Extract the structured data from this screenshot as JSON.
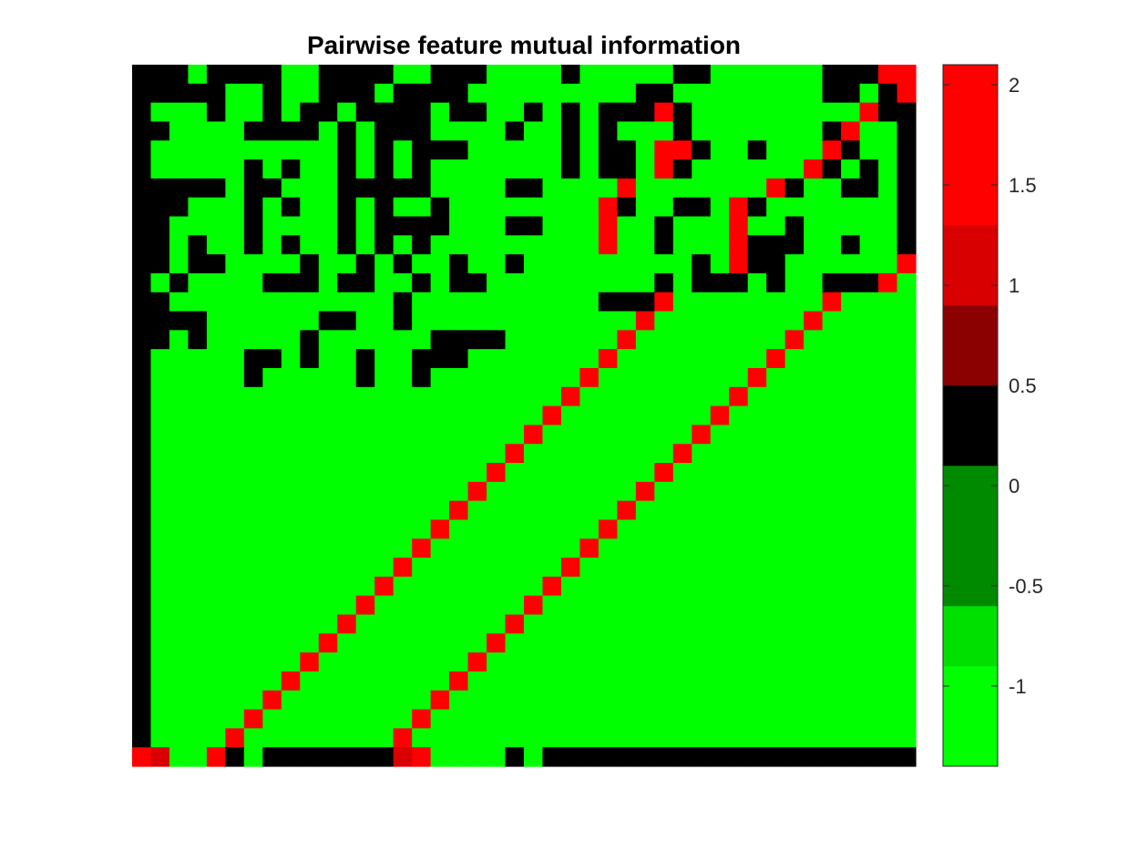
{
  "chart_data": {
    "type": "heatmap",
    "title": "Pairwise feature mutual information",
    "xlabel": "",
    "ylabel": "",
    "rows": 37,
    "cols": 42,
    "value_levels": [
      -1.2,
      -0.75,
      -0.25,
      0.25,
      0.75,
      1.25,
      1.75
    ],
    "matrix": [
      [
        3,
        3,
        3,
        0,
        3,
        3,
        3,
        3,
        0,
        0,
        3,
        3,
        3,
        3,
        0,
        0,
        3,
        3,
        3,
        0,
        0,
        0,
        0,
        3,
        0,
        0,
        0,
        0,
        0,
        3,
        3,
        0,
        0,
        0,
        0,
        0,
        0,
        3,
        3,
        3,
        6,
        6
      ],
      [
        3,
        3,
        3,
        3,
        3,
        0,
        0,
        3,
        0,
        0,
        3,
        3,
        3,
        0,
        3,
        3,
        3,
        3,
        0,
        0,
        0,
        0,
        0,
        0,
        0,
        0,
        0,
        3,
        3,
        0,
        0,
        0,
        0,
        0,
        0,
        0,
        0,
        3,
        3,
        0,
        3,
        6
      ],
      [
        3,
        0,
        0,
        0,
        3,
        0,
        0,
        3,
        0,
        3,
        3,
        0,
        3,
        3,
        3,
        3,
        0,
        3,
        3,
        0,
        0,
        3,
        0,
        3,
        0,
        3,
        3,
        3,
        6,
        3,
        0,
        0,
        0,
        0,
        0,
        0,
        0,
        0,
        0,
        6,
        3,
        3
      ],
      [
        3,
        3,
        0,
        0,
        0,
        0,
        3,
        3,
        3,
        3,
        0,
        3,
        0,
        3,
        3,
        3,
        0,
        0,
        0,
        0,
        3,
        0,
        0,
        3,
        0,
        3,
        0,
        0,
        0,
        3,
        0,
        0,
        0,
        0,
        0,
        0,
        0,
        3,
        6,
        0,
        0,
        3
      ],
      [
        3,
        0,
        0,
        0,
        0,
        0,
        0,
        0,
        0,
        0,
        0,
        3,
        0,
        3,
        0,
        3,
        3,
        3,
        0,
        0,
        0,
        0,
        0,
        3,
        0,
        3,
        3,
        0,
        6,
        6,
        3,
        0,
        0,
        3,
        0,
        0,
        0,
        6,
        3,
        0,
        0,
        3
      ],
      [
        3,
        0,
        0,
        0,
        0,
        0,
        3,
        0,
        3,
        0,
        0,
        3,
        0,
        3,
        0,
        3,
        0,
        0,
        0,
        0,
        0,
        0,
        0,
        3,
        0,
        3,
        3,
        0,
        6,
        3,
        0,
        0,
        0,
        0,
        0,
        0,
        6,
        3,
        0,
        3,
        0,
        3
      ],
      [
        3,
        3,
        3,
        3,
        3,
        0,
        3,
        3,
        0,
        0,
        0,
        3,
        3,
        3,
        3,
        3,
        0,
        0,
        0,
        0,
        3,
        3,
        0,
        0,
        0,
        0,
        6,
        0,
        0,
        0,
        0,
        0,
        0,
        0,
        6,
        3,
        0,
        0,
        3,
        3,
        0,
        3
      ],
      [
        3,
        3,
        3,
        0,
        0,
        0,
        3,
        0,
        3,
        0,
        0,
        3,
        0,
        3,
        0,
        0,
        3,
        0,
        0,
        0,
        0,
        0,
        0,
        0,
        0,
        6,
        3,
        0,
        0,
        3,
        3,
        0,
        6,
        3,
        0,
        0,
        0,
        0,
        0,
        0,
        0,
        3
      ],
      [
        3,
        3,
        0,
        0,
        0,
        0,
        3,
        0,
        0,
        0,
        0,
        3,
        0,
        3,
        3,
        3,
        3,
        0,
        0,
        0,
        3,
        3,
        0,
        0,
        0,
        6,
        0,
        0,
        3,
        0,
        0,
        0,
        6,
        0,
        0,
        3,
        0,
        0,
        0,
        0,
        0,
        3
      ],
      [
        3,
        3,
        0,
        3,
        0,
        0,
        3,
        0,
        3,
        0,
        0,
        3,
        0,
        3,
        0,
        3,
        0,
        0,
        0,
        0,
        0,
        0,
        0,
        0,
        0,
        6,
        0,
        0,
        3,
        0,
        0,
        0,
        6,
        3,
        3,
        3,
        0,
        0,
        3,
        0,
        0,
        3
      ],
      [
        3,
        3,
        0,
        3,
        3,
        0,
        0,
        0,
        0,
        3,
        0,
        0,
        3,
        0,
        3,
        0,
        0,
        3,
        0,
        0,
        3,
        0,
        0,
        0,
        0,
        0,
        0,
        0,
        0,
        0,
        3,
        0,
        6,
        3,
        3,
        0,
        0,
        0,
        0,
        0,
        0,
        6
      ],
      [
        3,
        0,
        3,
        0,
        0,
        0,
        0,
        3,
        3,
        3,
        0,
        3,
        3,
        0,
        0,
        3,
        0,
        3,
        3,
        0,
        0,
        0,
        0,
        0,
        0,
        0,
        0,
        0,
        3,
        0,
        3,
        3,
        3,
        0,
        3,
        0,
        0,
        3,
        3,
        3,
        6,
        0
      ],
      [
        3,
        3,
        0,
        0,
        0,
        0,
        0,
        0,
        0,
        0,
        0,
        0,
        0,
        0,
        3,
        0,
        0,
        0,
        0,
        0,
        0,
        0,
        0,
        0,
        0,
        3,
        3,
        3,
        6,
        0,
        0,
        0,
        0,
        0,
        0,
        0,
        0,
        6,
        0,
        0,
        0,
        0
      ],
      [
        3,
        3,
        3,
        3,
        0,
        0,
        0,
        0,
        0,
        0,
        3,
        3,
        0,
        0,
        3,
        0,
        0,
        0,
        0,
        0,
        0,
        0,
        0,
        0,
        0,
        0,
        0,
        6,
        0,
        0,
        0,
        0,
        0,
        0,
        0,
        0,
        6,
        0,
        0,
        0,
        0,
        0
      ],
      [
        3,
        3,
        0,
        3,
        0,
        0,
        0,
        0,
        0,
        3,
        0,
        0,
        0,
        0,
        0,
        0,
        3,
        3,
        3,
        3,
        0,
        0,
        0,
        0,
        0,
        0,
        6,
        0,
        0,
        0,
        0,
        0,
        0,
        0,
        0,
        6,
        0,
        0,
        0,
        0,
        0,
        0
      ],
      [
        3,
        0,
        0,
        0,
        0,
        0,
        3,
        3,
        0,
        3,
        0,
        0,
        3,
        0,
        0,
        3,
        3,
        3,
        0,
        0,
        0,
        0,
        0,
        0,
        0,
        6,
        0,
        0,
        0,
        0,
        0,
        0,
        0,
        0,
        6,
        0,
        0,
        0,
        0,
        0,
        0,
        0
      ],
      [
        3,
        0,
        0,
        0,
        0,
        0,
        3,
        0,
        0,
        0,
        0,
        0,
        3,
        0,
        0,
        3,
        0,
        0,
        0,
        0,
        0,
        0,
        0,
        0,
        6,
        0,
        0,
        0,
        0,
        0,
        0,
        0,
        0,
        6,
        0,
        0,
        0,
        0,
        0,
        0,
        0,
        0
      ],
      [
        3,
        0,
        0,
        0,
        0,
        0,
        0,
        0,
        0,
        0,
        0,
        0,
        0,
        0,
        0,
        0,
        0,
        0,
        0,
        0,
        0,
        0,
        0,
        6,
        0,
        0,
        0,
        0,
        0,
        0,
        0,
        0,
        6,
        0,
        0,
        0,
        0,
        0,
        0,
        0,
        0,
        0
      ],
      [
        3,
        0,
        0,
        0,
        0,
        0,
        0,
        0,
        0,
        0,
        0,
        0,
        0,
        0,
        0,
        0,
        0,
        0,
        0,
        0,
        0,
        0,
        6,
        0,
        0,
        0,
        0,
        0,
        0,
        0,
        0,
        6,
        0,
        0,
        0,
        0,
        0,
        0,
        0,
        0,
        0,
        0
      ],
      [
        3,
        0,
        0,
        0,
        0,
        0,
        0,
        0,
        0,
        0,
        0,
        0,
        0,
        0,
        0,
        0,
        0,
        0,
        0,
        0,
        0,
        6,
        0,
        0,
        0,
        0,
        0,
        0,
        0,
        0,
        6,
        0,
        0,
        0,
        0,
        0,
        0,
        0,
        0,
        0,
        0,
        0
      ],
      [
        3,
        0,
        0,
        0,
        0,
        0,
        0,
        0,
        0,
        0,
        0,
        0,
        0,
        0,
        0,
        0,
        0,
        0,
        0,
        0,
        6,
        0,
        0,
        0,
        0,
        0,
        0,
        0,
        0,
        6,
        0,
        0,
        0,
        0,
        0,
        0,
        0,
        0,
        0,
        0,
        0,
        0
      ],
      [
        3,
        0,
        0,
        0,
        0,
        0,
        0,
        0,
        0,
        0,
        0,
        0,
        0,
        0,
        0,
        0,
        0,
        0,
        0,
        6,
        0,
        0,
        0,
        0,
        0,
        0,
        0,
        0,
        6,
        0,
        0,
        0,
        0,
        0,
        0,
        0,
        0,
        0,
        0,
        0,
        0,
        0
      ],
      [
        3,
        0,
        0,
        0,
        0,
        0,
        0,
        0,
        0,
        0,
        0,
        0,
        0,
        0,
        0,
        0,
        0,
        0,
        6,
        0,
        0,
        0,
        0,
        0,
        0,
        0,
        0,
        6,
        0,
        0,
        0,
        0,
        0,
        0,
        0,
        0,
        0,
        0,
        0,
        0,
        0,
        0
      ],
      [
        3,
        0,
        0,
        0,
        0,
        0,
        0,
        0,
        0,
        0,
        0,
        0,
        0,
        0,
        0,
        0,
        0,
        6,
        0,
        0,
        0,
        0,
        0,
        0,
        0,
        0,
        6,
        0,
        0,
        0,
        0,
        0,
        0,
        0,
        0,
        0,
        0,
        0,
        0,
        0,
        0,
        0
      ],
      [
        3,
        0,
        0,
        0,
        0,
        0,
        0,
        0,
        0,
        0,
        0,
        0,
        0,
        0,
        0,
        0,
        6,
        0,
        0,
        0,
        0,
        0,
        0,
        0,
        0,
        6,
        0,
        0,
        0,
        0,
        0,
        0,
        0,
        0,
        0,
        0,
        0,
        0,
        0,
        0,
        0,
        0
      ],
      [
        3,
        0,
        0,
        0,
        0,
        0,
        0,
        0,
        0,
        0,
        0,
        0,
        0,
        0,
        0,
        6,
        0,
        0,
        0,
        0,
        0,
        0,
        0,
        0,
        6,
        0,
        0,
        0,
        0,
        0,
        0,
        0,
        0,
        0,
        0,
        0,
        0,
        0,
        0,
        0,
        0,
        0
      ],
      [
        3,
        0,
        0,
        0,
        0,
        0,
        0,
        0,
        0,
        0,
        0,
        0,
        0,
        0,
        6,
        0,
        0,
        0,
        0,
        0,
        0,
        0,
        0,
        6,
        0,
        0,
        0,
        0,
        0,
        0,
        0,
        0,
        0,
        0,
        0,
        0,
        0,
        0,
        0,
        0,
        0,
        0
      ],
      [
        3,
        0,
        0,
        0,
        0,
        0,
        0,
        0,
        0,
        0,
        0,
        0,
        0,
        6,
        0,
        0,
        0,
        0,
        0,
        0,
        0,
        0,
        6,
        0,
        0,
        0,
        0,
        0,
        0,
        0,
        0,
        0,
        0,
        0,
        0,
        0,
        0,
        0,
        0,
        0,
        0,
        0
      ],
      [
        3,
        0,
        0,
        0,
        0,
        0,
        0,
        0,
        0,
        0,
        0,
        0,
        6,
        0,
        0,
        0,
        0,
        0,
        0,
        0,
        0,
        6,
        0,
        0,
        0,
        0,
        0,
        0,
        0,
        0,
        0,
        0,
        0,
        0,
        0,
        0,
        0,
        0,
        0,
        0,
        0,
        0
      ],
      [
        3,
        0,
        0,
        0,
        0,
        0,
        0,
        0,
        0,
        0,
        0,
        6,
        0,
        0,
        0,
        0,
        0,
        0,
        0,
        0,
        6,
        0,
        0,
        0,
        0,
        0,
        0,
        0,
        0,
        0,
        0,
        0,
        0,
        0,
        0,
        0,
        0,
        0,
        0,
        0,
        0,
        0
      ],
      [
        3,
        0,
        0,
        0,
        0,
        0,
        0,
        0,
        0,
        0,
        6,
        0,
        0,
        0,
        0,
        0,
        0,
        0,
        0,
        6,
        0,
        0,
        0,
        0,
        0,
        0,
        0,
        0,
        0,
        0,
        0,
        0,
        0,
        0,
        0,
        0,
        0,
        0,
        0,
        0,
        0,
        0
      ],
      [
        3,
        0,
        0,
        0,
        0,
        0,
        0,
        0,
        0,
        6,
        0,
        0,
        0,
        0,
        0,
        0,
        0,
        0,
        6,
        0,
        0,
        0,
        0,
        0,
        0,
        0,
        0,
        0,
        0,
        0,
        0,
        0,
        0,
        0,
        0,
        0,
        0,
        0,
        0,
        0,
        0,
        0
      ],
      [
        3,
        0,
        0,
        0,
        0,
        0,
        0,
        0,
        6,
        0,
        0,
        0,
        0,
        0,
        0,
        0,
        0,
        6,
        0,
        0,
        0,
        0,
        0,
        0,
        0,
        0,
        0,
        0,
        0,
        0,
        0,
        0,
        0,
        0,
        0,
        0,
        0,
        0,
        0,
        0,
        0,
        0
      ],
      [
        3,
        0,
        0,
        0,
        0,
        0,
        0,
        6,
        0,
        0,
        0,
        0,
        0,
        0,
        0,
        0,
        6,
        0,
        0,
        0,
        0,
        0,
        0,
        0,
        0,
        0,
        0,
        0,
        0,
        0,
        0,
        0,
        0,
        0,
        0,
        0,
        0,
        0,
        0,
        0,
        0,
        0
      ],
      [
        3,
        0,
        0,
        0,
        0,
        0,
        6,
        0,
        0,
        0,
        0,
        0,
        0,
        0,
        0,
        6,
        0,
        0,
        0,
        0,
        0,
        0,
        0,
        0,
        0,
        0,
        0,
        0,
        0,
        0,
        0,
        0,
        0,
        0,
        0,
        0,
        0,
        0,
        0,
        0,
        0,
        0
      ],
      [
        3,
        0,
        0,
        0,
        0,
        6,
        0,
        0,
        0,
        0,
        0,
        0,
        0,
        0,
        6,
        0,
        0,
        0,
        0,
        0,
        0,
        0,
        0,
        0,
        0,
        0,
        0,
        0,
        0,
        0,
        0,
        0,
        0,
        0,
        0,
        0,
        0,
        0,
        0,
        0,
        0,
        0
      ],
      [
        6,
        5,
        0,
        0,
        6,
        3,
        0,
        3,
        3,
        3,
        3,
        3,
        3,
        3,
        5,
        6,
        0,
        0,
        0,
        0,
        3,
        0,
        3,
        3,
        3,
        3,
        3,
        3,
        3,
        3,
        3,
        3,
        3,
        3,
        3,
        3,
        3,
        3,
        3,
        3,
        3,
        3
      ]
    ],
    "colorbar": {
      "ticks": [
        2,
        1.5,
        1,
        0.5,
        0,
        -0.5,
        -1
      ],
      "tick_labels": [
        "2",
        "1.5",
        "1",
        "0.5",
        "0",
        "-0.5",
        "-1"
      ],
      "range": [
        -1.4,
        2.1
      ],
      "bands": [
        {
          "from": -1.4,
          "to": -0.9,
          "color": "#00ff00"
        },
        {
          "from": -0.9,
          "to": -0.6,
          "color": "#00e000"
        },
        {
          "from": -0.6,
          "to": 0.1,
          "color": "#008a00"
        },
        {
          "from": 0.1,
          "to": 0.5,
          "color": "#000000"
        },
        {
          "from": 0.5,
          "to": 0.9,
          "color": "#8b0000"
        },
        {
          "from": 0.9,
          "to": 1.3,
          "color": "#d80000"
        },
        {
          "from": 1.3,
          "to": 2.1,
          "color": "#ff0000"
        }
      ]
    }
  }
}
